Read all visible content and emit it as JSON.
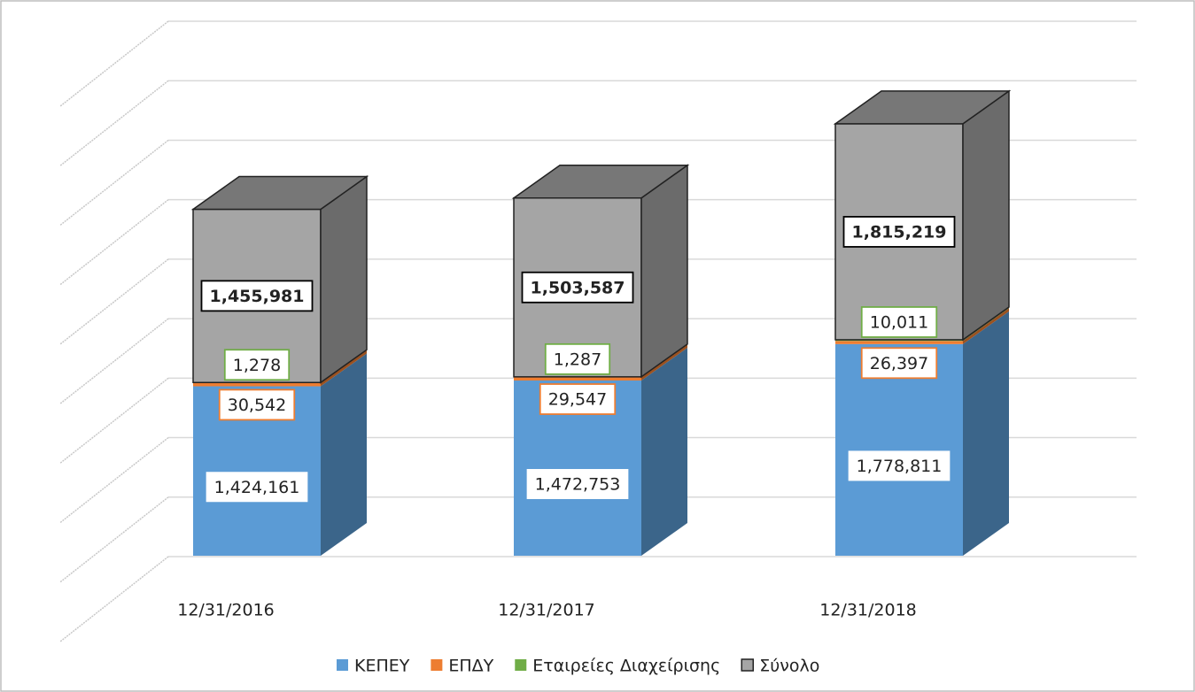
{
  "chart_data": {
    "type": "bar3d_stacked",
    "categories": [
      "12/31/2016",
      "12/31/2017",
      "12/31/2018"
    ],
    "series": [
      {
        "name": "ΚΕΠΕΥ",
        "color": "#5b9bd5",
        "values": [
          1424161,
          1472753,
          1778811
        ],
        "value_labels": [
          "1,424,161",
          "1,472,753",
          "1,778,811"
        ]
      },
      {
        "name": "ΕΠΔΥ",
        "color": "#ed7d31",
        "values": [
          30542,
          29547,
          26397
        ],
        "value_labels": [
          "30,542",
          "29,547",
          "26,397"
        ]
      },
      {
        "name": "Εταιρείες Διαχείρισης",
        "color": "#70ad47",
        "values": [
          1278,
          1287,
          10011
        ],
        "value_labels": [
          "1,278",
          "1,287",
          "10,011"
        ]
      },
      {
        "name": "Σύνολο",
        "color": "#a5a5a5",
        "values": [
          1455981,
          1503587,
          1815219
        ],
        "value_labels": [
          "1,455,981",
          "1,503,587",
          "1,815,219"
        ]
      }
    ],
    "ylim": [
      0,
      4500000
    ],
    "yticks": [
      0,
      500000,
      1000000,
      1500000,
      2000000,
      2500000,
      3000000,
      3500000,
      4000000,
      4500000
    ],
    "grid": true,
    "legend": "bottom"
  }
}
